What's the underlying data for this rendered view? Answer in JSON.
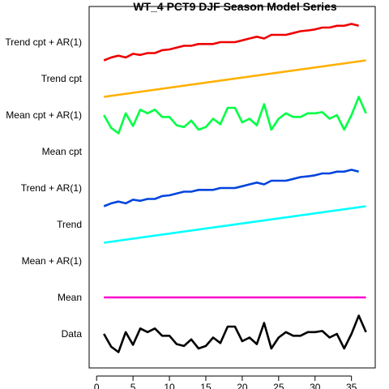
{
  "chart_data": {
    "type": "line",
    "title": "WT_4 PCT9 DJF Season Model Series",
    "xlabel": "",
    "ylabel": "",
    "xlim": [
      0,
      38
    ],
    "x_ticks": [
      0,
      5,
      10,
      15,
      20,
      25,
      30,
      35
    ],
    "grid": false,
    "categories": [
      "Data",
      "Mean",
      "Mean + AR(1)",
      "Trend",
      "Trend + AR(1)",
      "Mean cpt",
      "Mean cpt + AR(1)",
      "Trend cpt",
      "Trend cpt + AR(1)"
    ],
    "series": [
      {
        "name": "Data",
        "color": "#000000",
        "x": [
          1,
          2,
          3,
          4,
          5,
          6,
          7,
          8,
          9,
          10,
          11,
          12,
          13,
          14,
          15,
          16,
          17,
          18,
          19,
          20,
          21,
          22,
          23,
          24,
          25,
          26,
          27,
          28,
          29,
          30,
          31,
          32,
          33,
          34,
          35,
          36,
          37
        ],
        "values": [
          0.0,
          -0.35,
          -0.5,
          0.05,
          -0.3,
          0.15,
          0.05,
          0.15,
          -0.05,
          -0.05,
          -0.28,
          -0.33,
          -0.15,
          -0.4,
          -0.33,
          -0.1,
          -0.25,
          0.2,
          0.2,
          -0.2,
          -0.1,
          -0.28,
          0.3,
          -0.4,
          -0.1,
          0.05,
          -0.05,
          -0.05,
          0.05,
          0.05,
          0.08,
          -0.1,
          0.0,
          -0.4,
          0.0,
          0.5,
          0.05
        ]
      },
      {
        "name": "Mean",
        "color": "#ff00cc",
        "x": [
          1,
          37
        ],
        "values": [
          0,
          0
        ]
      },
      {
        "name": "Trend",
        "color": "#00ffff",
        "x": [
          1,
          37
        ],
        "values": [
          -0.5,
          0.5
        ]
      },
      {
        "name": "Trend + AR(1)",
        "color": "#0044dd",
        "x": [
          1,
          2,
          3,
          4,
          5,
          6,
          7,
          8,
          9,
          10,
          11,
          12,
          13,
          14,
          15,
          16,
          17,
          18,
          19,
          20,
          21,
          22,
          23,
          24,
          25,
          26,
          27,
          28,
          29,
          30,
          31,
          32,
          33,
          34,
          35,
          36
        ],
        "values": [
          -0.5,
          -0.42,
          -0.37,
          -0.42,
          -0.32,
          -0.35,
          -0.3,
          -0.3,
          -0.22,
          -0.2,
          -0.15,
          -0.1,
          -0.1,
          -0.05,
          -0.05,
          -0.05,
          0.0,
          0.0,
          0.0,
          0.05,
          0.1,
          0.15,
          0.1,
          0.2,
          0.2,
          0.2,
          0.25,
          0.3,
          0.32,
          0.35,
          0.4,
          0.4,
          0.45,
          0.45,
          0.5,
          0.45
        ]
      },
      {
        "name": "Mean cpt + AR(1)",
        "color": "#00ff44",
        "x": [
          1,
          2,
          3,
          4,
          5,
          6,
          7,
          8,
          9,
          10,
          11,
          12,
          13,
          14,
          15,
          16,
          17,
          18,
          19,
          20,
          21,
          22,
          23,
          24,
          25,
          26,
          27,
          28,
          29,
          30,
          31,
          32,
          33,
          34,
          35,
          36,
          37
        ],
        "values": [
          0.0,
          -0.35,
          -0.5,
          0.05,
          -0.3,
          0.15,
          0.05,
          0.15,
          -0.05,
          -0.05,
          -0.28,
          -0.33,
          -0.15,
          -0.4,
          -0.33,
          -0.1,
          -0.25,
          0.2,
          0.2,
          -0.2,
          -0.1,
          -0.28,
          0.3,
          -0.4,
          -0.1,
          0.05,
          -0.05,
          -0.05,
          0.05,
          0.05,
          0.08,
          -0.1,
          0.0,
          -0.4,
          0.0,
          0.5,
          0.05
        ]
      },
      {
        "name": "Trend cpt",
        "color": "#ffb000",
        "x": [
          1,
          37
        ],
        "values": [
          -0.5,
          0.5
        ]
      },
      {
        "name": "Trend cpt + AR(1)",
        "color": "#ee0000",
        "x": [
          1,
          2,
          3,
          4,
          5,
          6,
          7,
          8,
          9,
          10,
          11,
          12,
          13,
          14,
          15,
          16,
          17,
          18,
          19,
          20,
          21,
          22,
          23,
          24,
          25,
          26,
          27,
          28,
          29,
          30,
          31,
          32,
          33,
          34,
          35,
          36
        ],
        "values": [
          -0.5,
          -0.42,
          -0.37,
          -0.42,
          -0.32,
          -0.35,
          -0.3,
          -0.3,
          -0.22,
          -0.2,
          -0.15,
          -0.1,
          -0.1,
          -0.05,
          -0.05,
          -0.05,
          0.0,
          0.0,
          0.0,
          0.05,
          0.1,
          0.15,
          0.1,
          0.2,
          0.2,
          0.2,
          0.25,
          0.3,
          0.32,
          0.35,
          0.4,
          0.4,
          0.45,
          0.45,
          0.5,
          0.45
        ]
      }
    ]
  }
}
